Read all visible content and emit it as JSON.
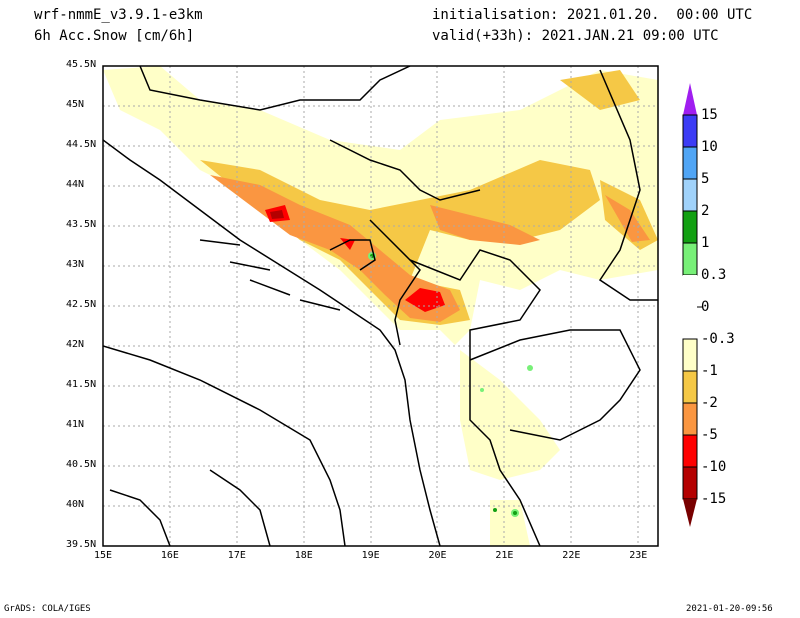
{
  "header": {
    "model": "wrf-nmmE_v3.9.1-e3km",
    "field": "6h Acc.Snow [cm/6h]",
    "init": "initialisation: 2021.01.20.  00:00 UTC",
    "valid": "valid(+33h): 2021.JAN.21 09:00 UTC"
  },
  "footer": {
    "left": "GrADS: COLA/IGES",
    "right": "2021-01-20-09:56"
  },
  "axes": {
    "lon_ticks": [
      "15E",
      "16E",
      "17E",
      "18E",
      "19E",
      "20E",
      "21E",
      "22E",
      "23E"
    ],
    "lat_ticks": [
      "45.5N",
      "45N",
      "44.5N",
      "44N",
      "43.5N",
      "43N",
      "42.5N",
      "42N",
      "41.5N",
      "41N",
      "40.5N",
      "40N",
      "39.5N"
    ]
  },
  "colorbar": {
    "labels": [
      "15",
      "10",
      "5",
      "2",
      "1",
      "0.3",
      "0",
      "-0.3",
      "-1",
      "-2",
      "-5",
      "-10",
      "-15"
    ],
    "colors": [
      "#a01ef0",
      "#3c3cf5",
      "#50a5f5",
      "#a0d2fa",
      "#12a012",
      "#78f078",
      "#ffffff",
      "#ffffc8",
      "#f5c846",
      "#fa9641",
      "#ff0000",
      "#b40000",
      "#780000"
    ]
  }
}
